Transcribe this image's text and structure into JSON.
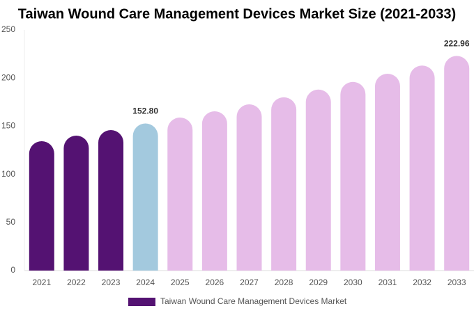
{
  "chart_data": {
    "type": "bar",
    "title": "Taiwan Wound Care Management Devices Market Size (2021-2033)",
    "categories": [
      "2021",
      "2022",
      "2023",
      "2024",
      "2025",
      "2026",
      "2027",
      "2028",
      "2029",
      "2030",
      "2031",
      "2032",
      "2033"
    ],
    "series": [
      {
        "name": "Taiwan Wound Care Management Devices Market",
        "color": "#541272",
        "values": [
          134.4,
          140.2,
          146,
          152.8,
          159,
          165.5,
          172.7,
          180,
          188,
          196,
          204.5,
          213,
          222.96
        ],
        "value_labels": [
          null,
          null,
          null,
          "152.80",
          null,
          null,
          null,
          null,
          null,
          null,
          null,
          null,
          "222.96"
        ],
        "bar_colors": [
          "#541272",
          "#541272",
          "#541272",
          "#a3c9de",
          "#e6bce8",
          "#e6bce8",
          "#e6bce8",
          "#e6bce8",
          "#e6bce8",
          "#e6bce8",
          "#e6bce8",
          "#e6bce8",
          "#e6bce8"
        ]
      }
    ],
    "ylim": [
      0,
      250
    ],
    "yticks": [
      0,
      50,
      100,
      150,
      200,
      250
    ],
    "grid": false,
    "legend": "bottom"
  }
}
